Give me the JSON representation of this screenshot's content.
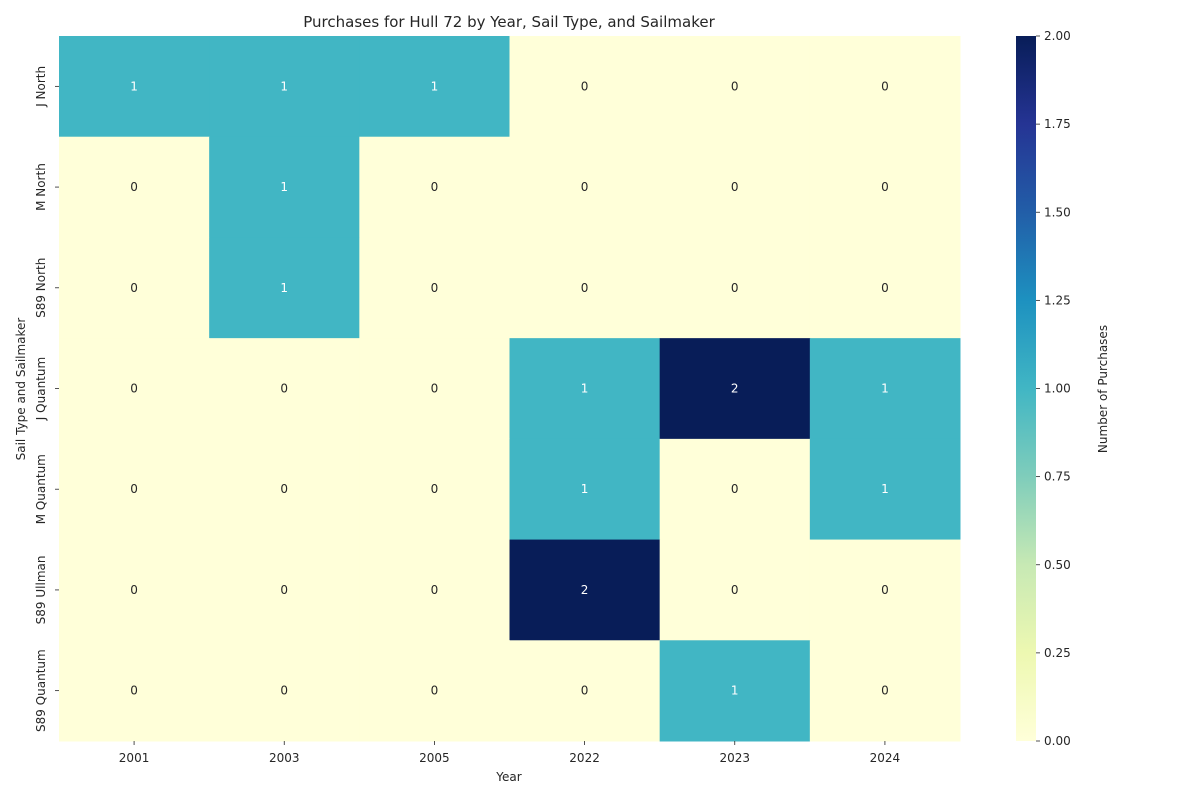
{
  "chart_data": {
    "type": "heatmap",
    "title": "Purchases for Hull 72 by Year, Sail Type, and Sailmaker",
    "xlabel": "Year",
    "ylabel": "Sail Type and Sailmaker",
    "x_categories": [
      "2001",
      "2003",
      "2005",
      "2022",
      "2023",
      "2024"
    ],
    "y_categories": [
      "J North",
      "M North",
      "S89 North",
      "J Quantum",
      "M Quantum",
      "S89 Ullman",
      "S89 Quantum"
    ],
    "values": [
      [
        1,
        1,
        1,
        0,
        0,
        0
      ],
      [
        0,
        1,
        0,
        0,
        0,
        0
      ],
      [
        0,
        1,
        0,
        0,
        0,
        0
      ],
      [
        0,
        0,
        0,
        1,
        2,
        1
      ],
      [
        0,
        0,
        0,
        1,
        0,
        1
      ],
      [
        0,
        0,
        0,
        2,
        0,
        0
      ],
      [
        0,
        0,
        0,
        0,
        1,
        0
      ]
    ],
    "annotated": true,
    "colorbar": {
      "label": "Number of Purchases",
      "range": [
        0,
        2
      ],
      "ticks": [
        "0.00",
        "0.25",
        "0.50",
        "0.75",
        "1.00",
        "1.25",
        "1.50",
        "1.75",
        "2.00"
      ]
    },
    "colormap": "YlGnBu",
    "colors": {
      "low": "#ffffd9",
      "mid": "#41b6c4",
      "high": "#081d58"
    }
  }
}
